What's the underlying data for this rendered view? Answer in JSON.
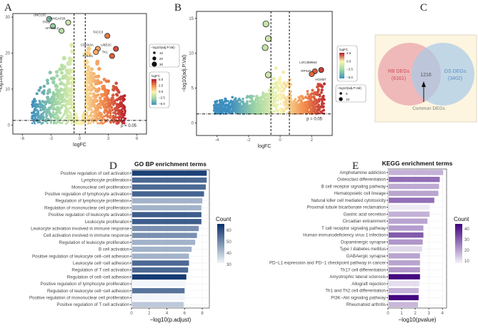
{
  "panels": {
    "a": "A",
    "b": "B",
    "c": "C",
    "d": "D",
    "e": "E"
  },
  "chart_data": [
    {
      "type": "scatter",
      "panel": "A",
      "xlabel": "logFC",
      "ylabel": "−log10(adj.P.Val)",
      "xlim": [
        -7,
        7
      ],
      "ylim": [
        -2.5,
        31
      ],
      "xticks": [
        -6,
        -3,
        0,
        3,
        6
      ],
      "yticks": [
        0,
        10,
        20,
        30
      ],
      "logfc_thresholds": [
        -0.585,
        0.585
      ],
      "p_threshold": 1.3,
      "p_label": "p = 0.05",
      "labeled_points": [
        {
          "gene": "UNC13C",
          "x": -3.2,
          "y": 29.5
        },
        {
          "gene": "ARHGAP28",
          "x": -1.2,
          "y": 28.5
        },
        {
          "gene": "TRIO",
          "x": -2.8,
          "y": 27.5
        },
        {
          "gene": "AFAP1L2",
          "x": -1.9,
          "y": 26.2
        },
        {
          "gene": "TACC3",
          "x": 2.9,
          "y": 24.8
        },
        {
          "gene": "CDKN3A",
          "x": 1.9,
          "y": 21.2
        },
        {
          "gene": "UBE2C",
          "x": 3.8,
          "y": 21.2
        },
        {
          "gene": "POLD1",
          "x": 1.7,
          "y": 20.3
        },
        {
          "gene": "TK1",
          "x": 3.4,
          "y": 19.2
        }
      ],
      "size_legend": {
        "title": "−log10(adj.P.Val)",
        "values": [
          "10",
          "20",
          "30"
        ]
      },
      "color_legend": {
        "title": "logFC",
        "values": [
          "5.0",
          "2.5",
          "0.0",
          "−2.5",
          "−5.0"
        ],
        "colors": [
          "#b2182b",
          "#f28a4a",
          "#f9f5b0",
          "#9fd6a4",
          "#3d8fbf"
        ]
      }
    },
    {
      "type": "scatter",
      "panel": "B",
      "xlabel": "logFC",
      "ylabel": "−log10(adj.P.Val)",
      "xlim": [
        -5.3,
        3.3
      ],
      "ylim": [
        -1.8,
        16
      ],
      "xticks": [
        -4,
        -2,
        0,
        2
      ],
      "yticks": [
        0,
        5,
        10,
        15
      ],
      "logfc_thresholds": [
        -0.585,
        0.585
      ],
      "p_threshold": 1.3,
      "p_label": "p = 0.05",
      "labeled_points": [
        {
          "gene": "LOC388564",
          "x": 2.6,
          "y": 7.6
        },
        {
          "gene": "RPS25",
          "x": 2.2,
          "y": 7.4
        },
        {
          "gene": "HOXB7",
          "x": 2.0,
          "y": 7.0
        }
      ],
      "highlight_points": [
        {
          "x": -0.9,
          "y": 14.2
        },
        {
          "x": -0.75,
          "y": 12.1
        },
        {
          "x": -0.95,
          "y": 10.8
        },
        {
          "x": -0.75,
          "y": 6.9
        }
      ],
      "size_legend": {
        "title": "−log10(adj.P.Val)",
        "values": [
          "5",
          "10"
        ]
      },
      "color_legend": {
        "title": "logFC",
        "values": [
          "2.5",
          "0.0",
          "−2.5",
          "−5.0"
        ],
        "colors": [
          "#b2182b",
          "#f9f5b0",
          "#9fd6a4",
          "#3d8fbf"
        ]
      }
    },
    {
      "type": "venn",
      "panel": "C",
      "sets": [
        {
          "name": "RB DEGs",
          "count": "(6161)",
          "color": "#e8a0a8"
        },
        {
          "name": "OS DEGs",
          "count": "(3402)",
          "color": "#a8cbe8"
        }
      ],
      "intersection": "1216",
      "annotation": "Common DEGs",
      "background": "#fdf5e0"
    },
    {
      "type": "bar",
      "panel": "D",
      "title": "GO BP enrichment terms",
      "xlabel": "−log10(p.adjust)",
      "xlim": [
        0,
        8.8
      ],
      "xticks": [
        0,
        2,
        4,
        6,
        8
      ],
      "categories": [
        "Positive regulation of cell activation",
        "Lymphocyte proliferation",
        "Mononuclear cell proliferation",
        "Positive regulation of lymphocyte activation",
        "Regulation of lymphocyte proliferation",
        "Regulation of mononuclear cell proliferation",
        "Positive regulation of leukocyte activation",
        "Leukocyte proliferation",
        "Leukocyte activation involved in immune response",
        "Cell activation involved in immune response",
        "Regulation of leukocyte proliferation",
        "B cell activation",
        "Positive regulation of leukocyte cell−cell adhesion",
        "Leukocyte cell−cell adhesion",
        "Regulation of T cell activation",
        "Regulation of cell−cell adhesion",
        "Positive regulation of lymphocyte proliferation",
        "Regulation of leukocyte cell−cell adhesion",
        "Positive regulation of mononuclear cell proliferation",
        "Positive regulation of T cell activation"
      ],
      "values": [
        8.5,
        8.5,
        8.4,
        8.2,
        8.0,
        7.9,
        7.9,
        7.9,
        7.6,
        7.4,
        7.2,
        6.8,
        6.5,
        6.5,
        6.4,
        6.2,
        6.1,
        6.0,
        6.0,
        5.9
      ],
      "counts": [
        62,
        55,
        55,
        56,
        42,
        42,
        57,
        57,
        48,
        48,
        42,
        42,
        42,
        55,
        55,
        63,
        30,
        53,
        30,
        38
      ],
      "legend": {
        "title": "Count",
        "values": [
          "60",
          "50",
          "40",
          "30"
        ],
        "range": [
          30,
          65
        ],
        "colors": [
          "#f2f6fb",
          "#08306b"
        ]
      }
    },
    {
      "type": "bar",
      "panel": "E",
      "title": "KEGG enrichment terms",
      "xlabel": "−log10(pvalue)",
      "xlim": [
        0,
        4.3
      ],
      "xticks": [
        0,
        1,
        2,
        3,
        4
      ],
      "categories": [
        "Amphetamine addiction",
        "Osteoclast differentiation",
        "B cell receptor signaling pathway",
        "Hematopoietic cell lineage",
        "Natural killer cell mediated cytotoxicity",
        "Proximal tubule bicarbonate reclamation",
        "Gastric acid secretion",
        "Circadian entrainment",
        "T cell receptor signaling pathway",
        "Human immunodeficiency virus 1 infection",
        "Dopaminergic synapse",
        "Type I diabetes mellitus",
        "GABAergic synapse",
        "PD−L1 expression and PD−1 checkpoint pathway in cancer",
        "Th17 cell differentiation",
        "Amyotrophic lateral sclerosis",
        "Allograft rejection",
        "Th1 and Th2 cell differentiation",
        "PI3K−Akt signaling pathway",
        "Rheumatoid arthritis"
      ],
      "values": [
        4.05,
        3.8,
        3.75,
        3.7,
        3.4,
        3.05,
        3.05,
        2.9,
        2.6,
        2.6,
        2.55,
        2.5,
        2.35,
        2.35,
        2.35,
        2.35,
        2.3,
        2.25,
        2.25,
        2.2
      ],
      "counts": [
        15,
        25,
        16,
        17,
        25,
        6,
        15,
        17,
        18,
        28,
        19,
        9,
        17,
        17,
        19,
        41,
        8,
        15,
        41,
        14
      ],
      "legend": {
        "title": "Count",
        "values": [
          "40",
          "30",
          "20",
          "10"
        ],
        "range": [
          5,
          42
        ],
        "colors": [
          "#f4f2f8",
          "#3f007d"
        ]
      }
    }
  ]
}
